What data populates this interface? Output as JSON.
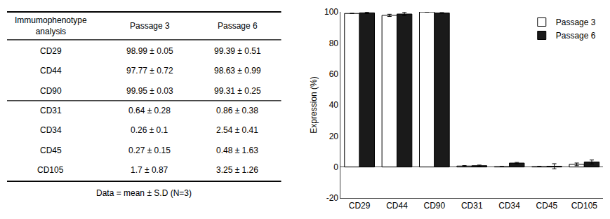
{
  "chart_data": [
    {
      "type": "table",
      "header": [
        "Immumophenotype\nanalysis",
        "Passage 3",
        "Passage 6"
      ],
      "rows": [
        [
          "CD29",
          "98.99 ± 0.05",
          "99.39 ± 0.51"
        ],
        [
          "CD44",
          "97.77 ± 0.72",
          "98.63 ± 0.99"
        ],
        [
          "CD90",
          "99.95 ± 0.03",
          "99.31 ± 0.25"
        ],
        [
          "CD31",
          "0.64 ± 0.28",
          "0.86 ± 0.38"
        ],
        [
          "CD34",
          "0.26 ± 0.1",
          "2.54 ± 0.41"
        ],
        [
          "CD45",
          "0.27 ± 0.15",
          "0.48 ± 1.63"
        ],
        [
          "CD105",
          "1.7 ± 0.87",
          "3.25 ± 1.26"
        ]
      ],
      "annotations": [
        "Data = mean ± S.D (N=3)"
      ]
    },
    {
      "type": "bar",
      "categories": [
        "CD29",
        "CD44",
        "CD90",
        "CD31",
        "CD34",
        "CD45",
        "CD105"
      ],
      "series": [
        {
          "name": "Passage 3",
          "color": "#ffffff",
          "values": [
            98.99,
            97.77,
            99.95,
            0.64,
            0.26,
            0.27,
            1.7
          ],
          "errors": [
            0.05,
            0.72,
            0.03,
            0.28,
            0.1,
            0.15,
            0.87
          ]
        },
        {
          "name": "Passage 6",
          "color": "#1a1a1a",
          "values": [
            99.39,
            98.63,
            99.31,
            0.86,
            2.54,
            0.48,
            3.25
          ],
          "errors": [
            0.51,
            0.99,
            0.25,
            0.38,
            0.41,
            1.63,
            1.26
          ]
        }
      ],
      "ylabel": "Expression (%)",
      "ylim": [
        -20,
        100
      ],
      "yticks": [
        -20,
        0,
        20,
        40,
        60,
        80,
        100
      ],
      "grid": false,
      "legend": "upper right"
    }
  ]
}
